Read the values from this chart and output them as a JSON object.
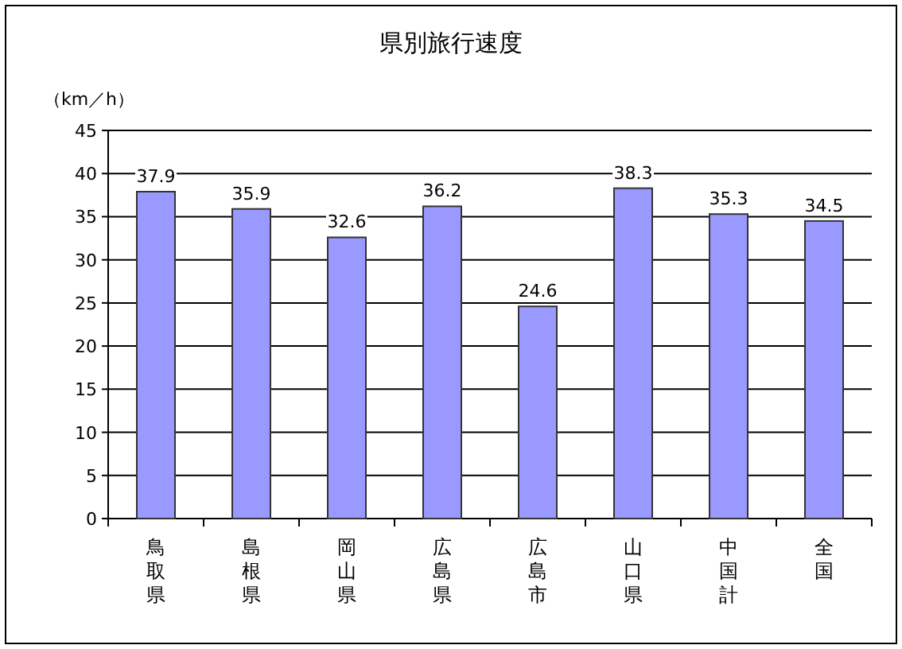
{
  "chart_data": {
    "type": "bar",
    "title": "県別旅行速度",
    "ylabel": "（km／h）",
    "categories": [
      "鳥取県",
      "島根県",
      "岡山県",
      "広島県",
      "広島市",
      "山口県",
      "中国計",
      "全国"
    ],
    "values": [
      37.9,
      35.9,
      32.6,
      36.2,
      24.6,
      38.3,
      35.3,
      34.5
    ],
    "color": "#9999ff",
    "ylim": [
      0,
      45
    ],
    "yticks": [
      0,
      5,
      10,
      15,
      20,
      25,
      30,
      35,
      40,
      45
    ],
    "grid": "y",
    "data_labels": true
  }
}
